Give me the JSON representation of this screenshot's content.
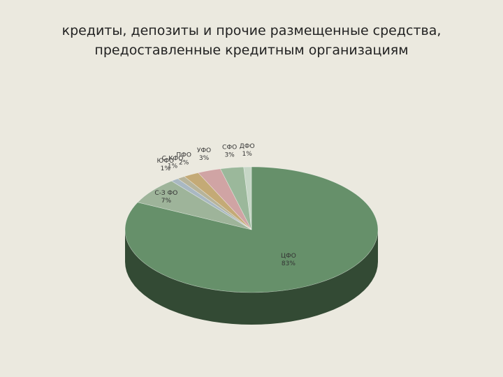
{
  "title": {
    "line1": "кредиты, депозиты и прочие размещенные средства,",
    "line2": "предоставленные кредитным организациям"
  },
  "chart_data": {
    "type": "pie",
    "three_d": true,
    "categories": [
      "ЦФО",
      "С-З ФО",
      "ЮФО",
      "С-КФО",
      "ПФО",
      "УФО",
      "СФО",
      "ДФО"
    ],
    "values": [
      83,
      7,
      1,
      1,
      2,
      3,
      3,
      1
    ],
    "data_labels": [
      "83%",
      "7%",
      "1%",
      "1%",
      "2%",
      "3%",
      "3%",
      "1%"
    ],
    "colors": [
      "#66906a",
      "#9eb49a",
      "#a9b8c2",
      "#b7b49a",
      "#c4aa76",
      "#d0a4a4",
      "#9bb89b",
      "#c6d6c6"
    ],
    "side_colors": [
      "#334a34",
      "#4f5a4d",
      "#555c61",
      "#5b5a4d",
      "#62553b",
      "#685252",
      "#4d5c4d",
      "#636b63"
    ],
    "legend": "none"
  }
}
